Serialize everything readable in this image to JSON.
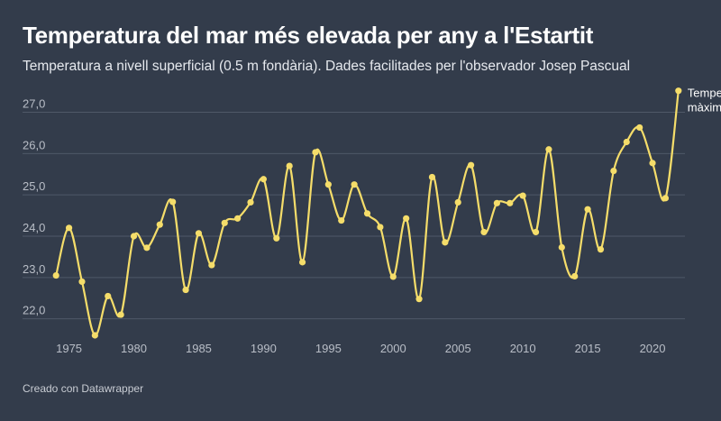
{
  "header": {
    "title": "Temperatura del mar més elevada per any a l'Estartit",
    "subtitle": "Temperatura a nivell superficial (0.5 m fondària). Dades facilitades per l'observador Josep Pascual"
  },
  "footer": {
    "credit": "Creado con Datawrapper"
  },
  "colors": {
    "background": "#333c4b",
    "line": "#f5dd6a",
    "grid": "#4f5868"
  },
  "chart_data": {
    "type": "line",
    "title": "Temperatura del mar més elevada per any a l'Estartit",
    "subtitle": "Temperatura a nivell superficial (0.5 m fondària). Dades facilitades per l'observador Josep Pascual",
    "xlabel": "",
    "ylabel": "",
    "xlim": [
      1973.5,
      2022.5
    ],
    "ylim": [
      21.6,
      27.6
    ],
    "grid": true,
    "x_ticks": [
      1975,
      1980,
      1985,
      1990,
      1995,
      2000,
      2005,
      2010,
      2015,
      2020
    ],
    "y_ticks": [
      22.0,
      23.0,
      24.0,
      25.0,
      26.0,
      27.0
    ],
    "y_tick_labels": [
      "22,0",
      "23,0",
      "24,0",
      "25,0",
      "26,0",
      "27,0"
    ],
    "x": [
      1974,
      1975,
      1976,
      1977,
      1978,
      1979,
      1980,
      1981,
      1982,
      1983,
      1984,
      1985,
      1986,
      1987,
      1988,
      1989,
      1990,
      1991,
      1992,
      1993,
      1994,
      1995,
      1996,
      1997,
      1998,
      1999,
      2000,
      2001,
      2002,
      2003,
      2004,
      2005,
      2006,
      2007,
      2008,
      2009,
      2010,
      2011,
      2012,
      2013,
      2014,
      2015,
      2016,
      2017,
      2018,
      2019,
      2020,
      2021,
      2022
    ],
    "series": [
      {
        "values": [
          23.05,
          24.2,
          22.9,
          21.6,
          22.55,
          22.1,
          24.0,
          23.72,
          24.28,
          24.83,
          22.7,
          24.07,
          23.3,
          24.32,
          24.43,
          24.82,
          25.38,
          23.95,
          25.7,
          23.37,
          26.03,
          25.25,
          24.38,
          25.25,
          24.55,
          24.22,
          23.02,
          24.43,
          22.48,
          25.43,
          23.85,
          24.82,
          25.72,
          24.1,
          24.8,
          24.8,
          24.98,
          24.1,
          26.1,
          23.73,
          23.03,
          24.65,
          23.68,
          25.58,
          26.28,
          26.63,
          25.77,
          24.92,
          27.52
        ]
      }
    ],
    "annotations": [
      {
        "label": "Temperatura màxima",
        "x": 2022,
        "y": 27.52
      }
    ]
  }
}
